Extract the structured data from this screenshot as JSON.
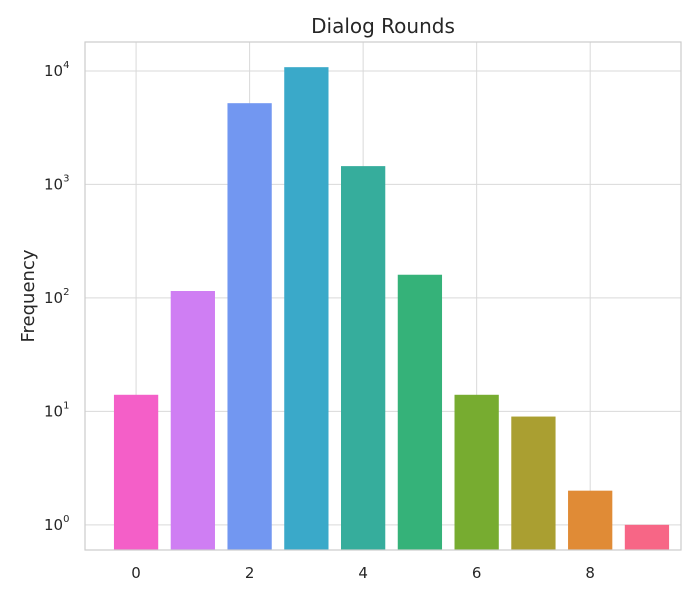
{
  "chart_data": {
    "type": "bar",
    "title": "Dialog Rounds",
    "xlabel": "",
    "ylabel": "Frequency",
    "yscale": "log",
    "ylim": [
      0.6,
      18000
    ],
    "xlim": [
      -0.9,
      9.6
    ],
    "x": [
      0,
      1,
      2,
      3,
      4,
      5,
      6,
      7,
      8,
      9
    ],
    "values": [
      14,
      115,
      5200,
      10800,
      1450,
      160,
      14,
      9,
      2,
      1
    ],
    "colors": [
      "#f45fc8",
      "#cf7ef3",
      "#7297f1",
      "#3aa9c9",
      "#36ad9c",
      "#35b279",
      "#77ac30",
      "#aa9f31",
      "#e08b36",
      "#f76686"
    ],
    "xticks": [
      0,
      2,
      4,
      6,
      8
    ],
    "yticks": [
      {
        "value": 1,
        "base": "10",
        "exp": "0"
      },
      {
        "value": 10,
        "base": "10",
        "exp": "1"
      },
      {
        "value": 100,
        "base": "10",
        "exp": "2"
      },
      {
        "value": 1000,
        "base": "10",
        "exp": "3"
      },
      {
        "value": 10000,
        "base": "10",
        "exp": "4"
      }
    ],
    "grid": true
  }
}
